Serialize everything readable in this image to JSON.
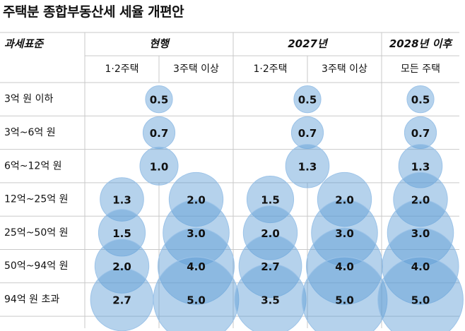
{
  "title": "주택분 종합부동산세 세율 개편안",
  "colors": {
    "bubble_fill": "#5b9bd5",
    "bubble_stroke": "#9cc3e8",
    "grid": "#c9c9c9",
    "text": "#111111"
  },
  "chart_data": {
    "type": "bubble-table",
    "corner_label": "과세표준",
    "groups": [
      {
        "label": "현행",
        "subs": [
          "1·2주택",
          "3주택 이상"
        ]
      },
      {
        "label": "2027년",
        "subs": [
          "1·2주택",
          "3주택 이상"
        ]
      },
      {
        "label": "2028년 이후",
        "subs": [
          "모든 주택"
        ]
      }
    ],
    "rows": [
      {
        "label": "3억 원 이하",
        "values": [
          0.5,
          0.5,
          0.5
        ],
        "merged": true
      },
      {
        "label": "3억~6억 원",
        "values": [
          0.7,
          0.7,
          0.7
        ],
        "merged": true
      },
      {
        "label": "6억~12억 원",
        "values": [
          1.0,
          1.3,
          1.3
        ],
        "merged": true
      },
      {
        "label": "12억~25억 원",
        "values": [
          1.3,
          2.0,
          1.5,
          2.0,
          2.0
        ],
        "merged": false
      },
      {
        "label": "25억~50억 원",
        "values": [
          1.5,
          3.0,
          2.0,
          3.0,
          3.0
        ],
        "merged": false
      },
      {
        "label": "50억~94억 원",
        "values": [
          2.0,
          4.0,
          2.7,
          4.0,
          4.0
        ],
        "merged": false
      },
      {
        "label": "94억 원 초과",
        "values": [
          2.7,
          5.0,
          3.5,
          5.0,
          5.0
        ],
        "merged": false
      }
    ]
  }
}
